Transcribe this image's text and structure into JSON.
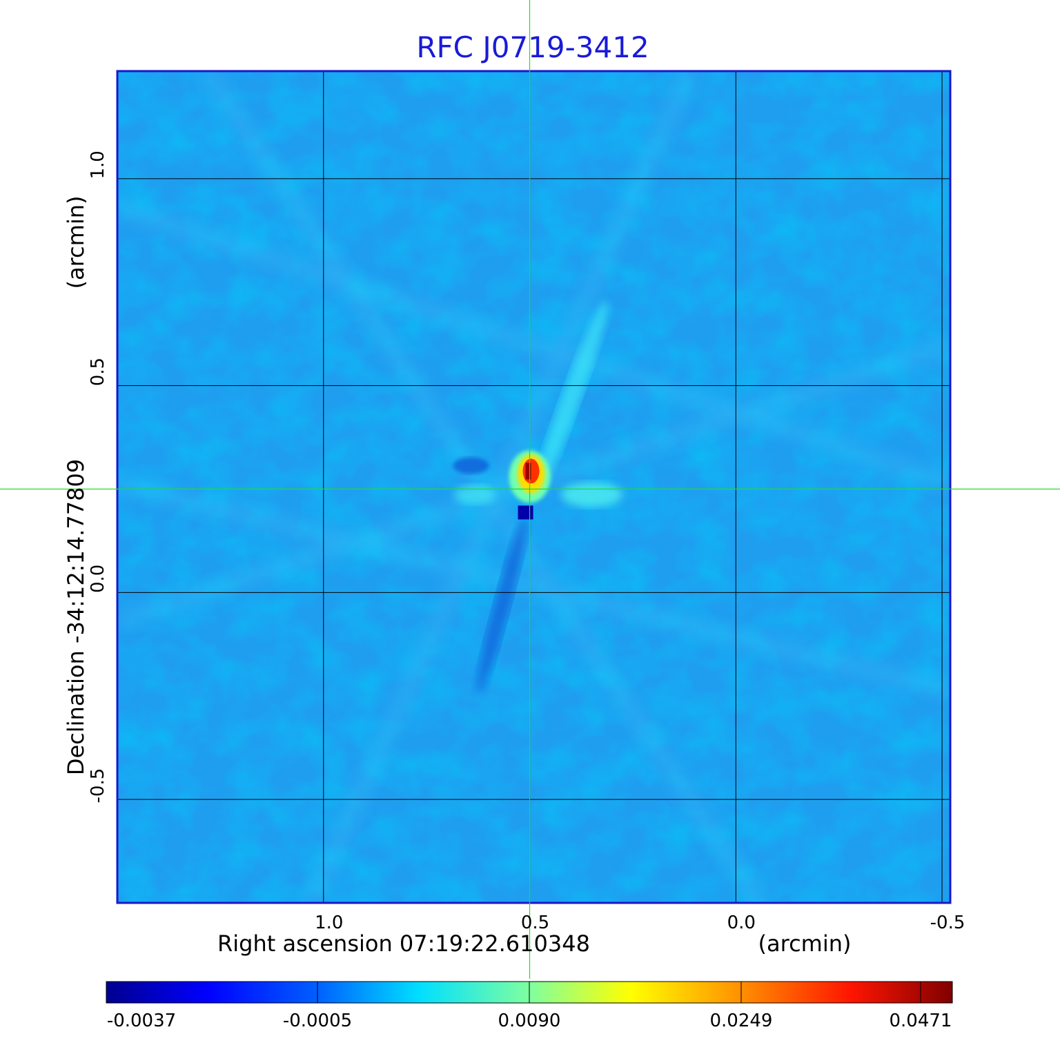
{
  "chart_data": {
    "type": "heatmap",
    "title": "RFC J0719-3412",
    "xlabel": "Right ascension  07:19:22.610348",
    "xunit": "(arcmin)",
    "ylabel": "Declination  -34:12:14.77809",
    "yunit": "(arcmin)",
    "x_ticks": [
      1.0,
      0.5,
      0.0,
      -0.5
    ],
    "x_tick_labels": [
      "1.0",
      "0.5",
      "0.0",
      "-0.5"
    ],
    "y_ticks": [
      1.0,
      0.5,
      0.0,
      -0.5
    ],
    "y_tick_labels": [
      "1.0",
      "0.5",
      "0.0",
      "-0.5"
    ],
    "xlim": [
      1.5,
      -0.52
    ],
    "ylim": [
      -0.75,
      1.26
    ],
    "grid": true,
    "crosshair": {
      "x": 0.5,
      "y": 0.25
    },
    "colorbar": {
      "placement": "bottom",
      "tick_labels": [
        "-0.0037",
        "-0.0005",
        "0.0090",
        "0.0249",
        "0.0471"
      ],
      "tick_values": [
        -0.0037,
        -0.0005,
        0.009,
        0.0249,
        0.0471
      ],
      "colormap": "jet"
    },
    "features": [
      {
        "label": "peak",
        "x": 0.5,
        "y": 0.27,
        "value": 0.0471
      },
      {
        "label": "minimum",
        "x": 0.505,
        "y": 0.19,
        "value": -0.0037
      }
    ],
    "colors": {
      "title": "#1a1ad8",
      "frame": "#1818cc",
      "grid": "#000000",
      "crosshair": "#22dd22",
      "background_emission": "#1f9ef0"
    }
  }
}
